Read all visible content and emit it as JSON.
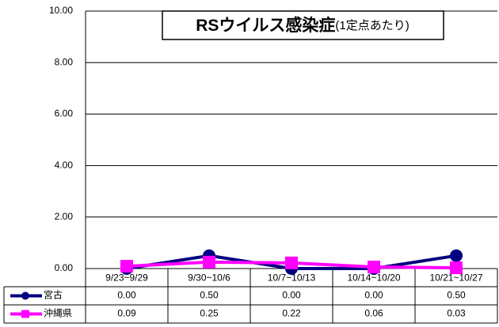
{
  "chart_data": {
    "type": "line",
    "title": "RSウイルス感染症",
    "subtitle": "(1定点あたり)",
    "categories": [
      "9/23~9/29",
      "9/30~10/6",
      "10/7~10/13",
      "10/14~10/20",
      "10/21~10/27"
    ],
    "series": [
      {
        "name": "宮古",
        "color": "#000080",
        "marker": "circle",
        "values": [
          0.0,
          0.5,
          0.0,
          0.0,
          0.5
        ],
        "value_labels": [
          "0.00",
          "0.50",
          "0.00",
          "0.00",
          "0.50"
        ]
      },
      {
        "name": "沖縄県",
        "color": "#ff00ff",
        "marker": "square",
        "values": [
          0.09,
          0.25,
          0.22,
          0.06,
          0.03
        ],
        "value_labels": [
          "0.09",
          "0.25",
          "0.22",
          "0.06",
          "0.03"
        ]
      }
    ],
    "ylim": [
      0,
      10
    ],
    "yticks": [
      {
        "value": 0,
        "label": "0.00"
      },
      {
        "value": 2,
        "label": "2.00"
      },
      {
        "value": 4,
        "label": "4.00"
      },
      {
        "value": 6,
        "label": "6.00"
      },
      {
        "value": 8,
        "label": "8.00"
      },
      {
        "value": 10,
        "label": "10.00"
      }
    ],
    "grid": true
  }
}
